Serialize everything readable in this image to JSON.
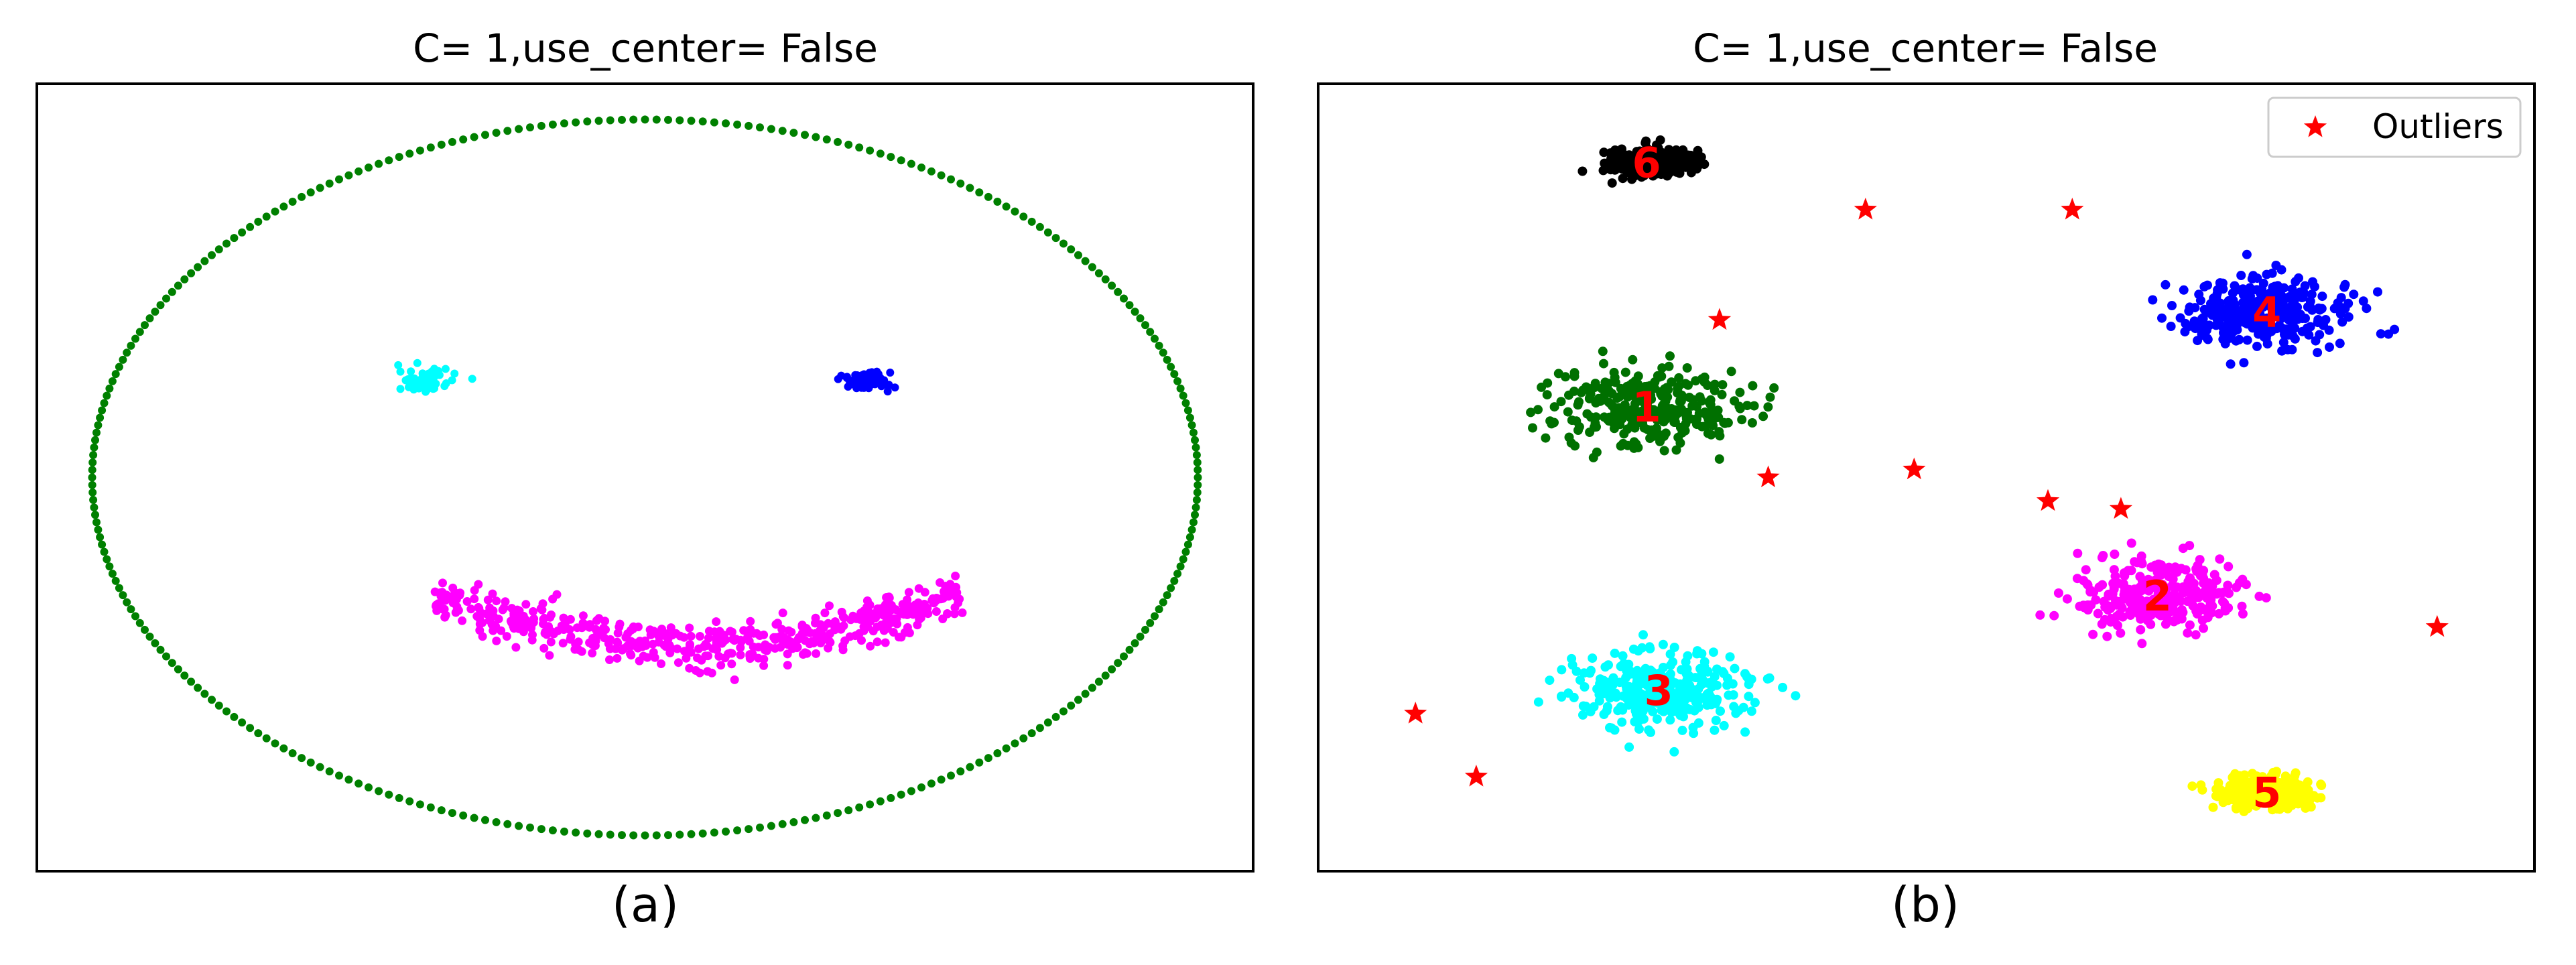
{
  "chart_data": [
    {
      "type": "scatter",
      "title": "C= 1,use_center= False",
      "caption": "(a)",
      "axes_visible": false,
      "series": [
        {
          "name": "ellipse",
          "color": "#008000",
          "shape": "ellipse-ring",
          "center": [
            0,
            0
          ],
          "radii": [
            1.0,
            1.0
          ],
          "n": 300
        },
        {
          "name": "left-eye",
          "color": "#00ffff",
          "shape": "blob",
          "center": [
            -0.4,
            0.27
          ],
          "spread": [
            0.045,
            0.03
          ],
          "n": 90
        },
        {
          "name": "right-eye",
          "color": "#0000ff",
          "shape": "blob",
          "center": [
            0.4,
            0.27
          ],
          "spread": [
            0.045,
            0.025
          ],
          "n": 90
        },
        {
          "name": "mouth",
          "color": "#ff00ff",
          "shape": "arc",
          "center": [
            0.1,
            -0.35
          ],
          "width": 0.48,
          "depth": 0.15,
          "thickness": 0.07,
          "n": 500
        }
      ],
      "xlim": [
        -1.1,
        1.1
      ],
      "ylim": [
        -1.1,
        1.1
      ]
    },
    {
      "type": "scatter",
      "title": "C= 1,use_center= False",
      "caption": "(b)",
      "axes_visible": false,
      "legend": {
        "label": "Outliers",
        "position": "top-right",
        "marker": "star",
        "color": "#ff0000"
      },
      "xlim": [
        0,
        100
      ],
      "ylim": [
        0,
        100
      ],
      "clusters": [
        {
          "label": "1",
          "color": "#007000",
          "center": [
            27,
            59
          ],
          "spread": [
            7,
            4.5
          ],
          "n": 300
        },
        {
          "label": "2",
          "color": "#ff00ff",
          "center": [
            69,
            35
          ],
          "spread": [
            6,
            4
          ],
          "n": 300
        },
        {
          "label": "3",
          "color": "#00ffff",
          "center": [
            28,
            23
          ],
          "spread": [
            7,
            4.5
          ],
          "n": 300
        },
        {
          "label": "4",
          "color": "#0000ff",
          "center": [
            78,
            71
          ],
          "spread": [
            6.5,
            4
          ],
          "n": 300
        },
        {
          "label": "5",
          "color": "#ffff00",
          "center": [
            78,
            10
          ],
          "spread": [
            3.5,
            1.8
          ],
          "n": 300
        },
        {
          "label": "6",
          "color": "#000000",
          "center": [
            27,
            90
          ],
          "spread": [
            3.5,
            1.8
          ],
          "n": 200
        }
      ],
      "outliers": [
        [
          45,
          84
        ],
        [
          62,
          84
        ],
        [
          33,
          70
        ],
        [
          37,
          50
        ],
        [
          49,
          51
        ],
        [
          60,
          47
        ],
        [
          66,
          46
        ],
        [
          92,
          31
        ],
        [
          8,
          20
        ],
        [
          13,
          12
        ]
      ]
    }
  ]
}
